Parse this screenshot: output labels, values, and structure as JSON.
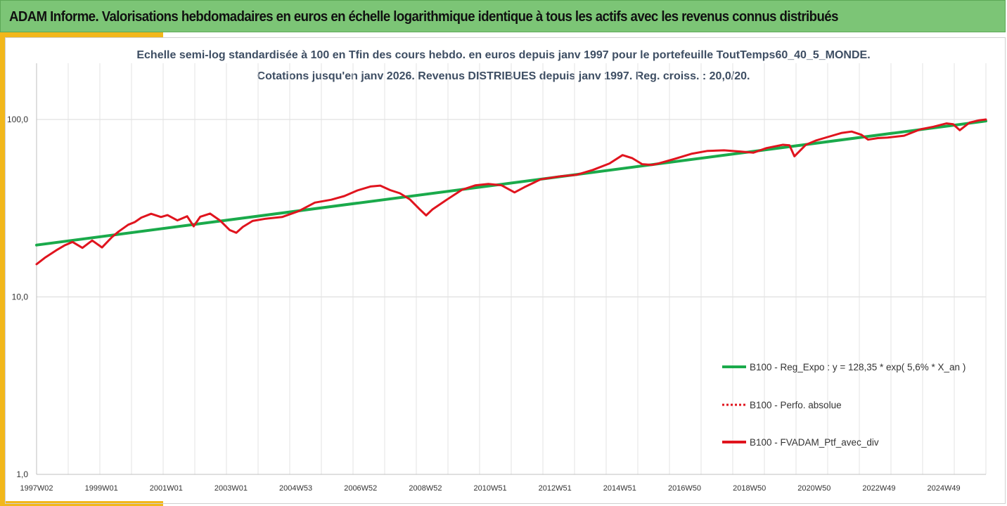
{
  "banner": {
    "title": "ADAM Informe. Valorisations hebdomadaires en euros en échelle logarithmique identique à tous les actifs avec les revenus connus distribués"
  },
  "colors": {
    "banner_bg": "#7cc576",
    "accent": "#f2b71b",
    "regression": "#1aaa4b",
    "portfolio": "#e0141e"
  },
  "chart_data": {
    "type": "line",
    "title": "Echelle semi-log standardisée à 100 en Tfin des cours hebdo. en euros depuis janv 1997 pour le portefeuille ToutTemps60_40_5_MONDE.",
    "subtitle": "Cotations jusqu'en janv 2026. Revenus DISTRIBUES depuis janv 1997. Reg. croiss. : 20,0/20.",
    "yscale": "log",
    "ylim": [
      1,
      200
    ],
    "yticks": [
      1,
      10,
      100
    ],
    "ytick_labels": [
      "1,0",
      "10,0",
      "100,0"
    ],
    "xlim": [
      1997.0,
      2026.0
    ],
    "xtick_labels": [
      "1997W02",
      "1999W01",
      "2001W01",
      "2003W01",
      "2004W53",
      "2006W52",
      "2008W52",
      "2010W51",
      "2012W51",
      "2014W51",
      "2016W50",
      "2018W50",
      "2020W50",
      "2022W49",
      "2024W49"
    ],
    "grid": true,
    "legend_position": "lower-right",
    "series": [
      {
        "name": "B100 - Reg_Expo : y = 128,35 * exp( 5,6% *  X_an )",
        "style": "solid",
        "color": "#1aaa4b",
        "x": [
          1997.0,
          2026.0
        ],
        "y": [
          19.6,
          98
        ]
      },
      {
        "name": "B100 - Perfo. absolue",
        "style": "dotted",
        "color": "#e0141e",
        "x": [],
        "y": []
      },
      {
        "name": "B100 - FVADAM_Ptf_avec_div",
        "style": "solid",
        "color": "#e0141e",
        "x": [
          1997.0,
          1997.25,
          1997.6,
          1997.85,
          1998.1,
          1998.4,
          1998.7,
          1999.0,
          1999.3,
          1999.5,
          1999.8,
          2000.0,
          2000.2,
          2000.5,
          2000.8,
          2001.0,
          2001.3,
          2001.6,
          2001.8,
          2002.0,
          2002.3,
          2002.6,
          2002.9,
          2003.1,
          2003.3,
          2003.6,
          2004.0,
          2004.5,
          2005.0,
          2005.5,
          2006.0,
          2006.4,
          2006.8,
          2007.2,
          2007.5,
          2007.8,
          2008.1,
          2008.4,
          2008.7,
          2008.9,
          2009.1,
          2009.5,
          2010.0,
          2010.4,
          2010.8,
          2011.2,
          2011.6,
          2011.9,
          2012.4,
          2013.0,
          2013.5,
          2014.0,
          2014.5,
          2014.9,
          2015.2,
          2015.5,
          2015.8,
          2016.0,
          2016.5,
          2017.0,
          2017.5,
          2018.0,
          2018.5,
          2018.9,
          2019.3,
          2019.8,
          2020.0,
          2020.15,
          2020.5,
          2020.8,
          2021.2,
          2021.6,
          2021.9,
          2022.2,
          2022.4,
          2022.7,
          2023.0,
          2023.5,
          2024.0,
          2024.4,
          2024.8,
          2025.0,
          2025.2,
          2025.5,
          2025.8,
          2026.0
        ],
        "y": [
          15.3,
          16.6,
          18.3,
          19.5,
          20.4,
          18.9,
          20.8,
          19.0,
          21.7,
          23.3,
          25.5,
          26.4,
          28.0,
          29.4,
          28.2,
          28.9,
          27.0,
          28.5,
          25.0,
          28.3,
          29.5,
          27.0,
          23.8,
          23.0,
          24.8,
          26.8,
          27.6,
          28.2,
          30.4,
          34.0,
          35.3,
          37.0,
          39.8,
          41.9,
          42.4,
          40.0,
          38.4,
          35.5,
          31.2,
          28.8,
          31.2,
          35.0,
          40.2,
          42.5,
          43.3,
          42.6,
          38.8,
          41.5,
          46.0,
          47.8,
          48.8,
          52.0,
          56.5,
          63.0,
          60.5,
          56.0,
          55.5,
          56.5,
          60.0,
          64.0,
          66.5,
          67.0,
          66.0,
          65.0,
          69.0,
          72.0,
          71.5,
          62.0,
          72.0,
          76.0,
          80.0,
          84.0,
          85.5,
          82.0,
          77.0,
          78.5,
          79.0,
          81.0,
          88.0,
          91.0,
          95.0,
          94.0,
          87.0,
          96.0,
          99.0,
          100.0
        ]
      }
    ]
  }
}
